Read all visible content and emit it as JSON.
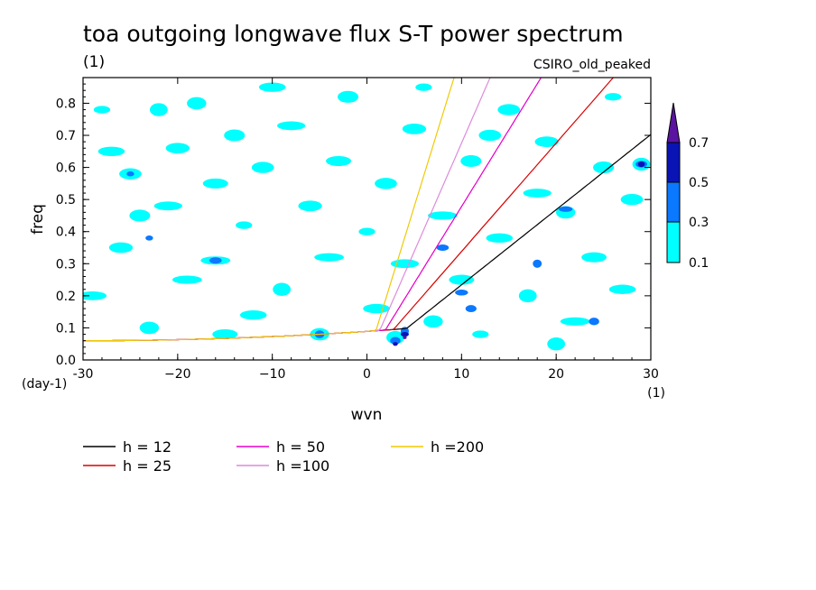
{
  "chart_data": {
    "type": "heatmap",
    "title": "toa outgoing longwave flux S-T power spectrum",
    "subtitle_left": "(1)",
    "subtitle_right": "CSIRO_old_peaked",
    "xlabel": "wvn",
    "ylabel": "freq",
    "x_unit": "(1)",
    "y_unit": "(day-1)",
    "xlim": [
      -30,
      30
    ],
    "ylim": [
      0,
      0.88
    ],
    "x_ticks": [
      -30,
      -20,
      -10,
      0,
      10,
      20,
      30
    ],
    "x_tick_labels": [
      "-30",
      "−20",
      "−10",
      "0",
      "10",
      "20",
      "30"
    ],
    "y_ticks": [
      0,
      0.1,
      0.2,
      0.3,
      0.4,
      0.5,
      0.6,
      0.7,
      0.8
    ],
    "y_tick_labels": [
      "0.0",
      "0.1",
      "0.2",
      "0.3",
      "0.4",
      "0.5",
      "0.6",
      "0.7",
      "0.8"
    ],
    "colorbar": {
      "levels": [
        "0.1",
        "0.3",
        "0.5",
        "0.7"
      ],
      "colors": [
        "#00ffff",
        "#0a78ff",
        "#0a14b4",
        "#5a14a0"
      ]
    },
    "contour_regions": [
      {
        "level": 0.1,
        "color": "#00ffff",
        "points": [
          [
            -28,
            0.78
          ],
          [
            -27,
            0.65
          ],
          [
            -25,
            0.58
          ],
          [
            -22,
            0.78
          ],
          [
            -21,
            0.48
          ],
          [
            -20,
            0.66
          ],
          [
            -18,
            0.8
          ],
          [
            -16,
            0.31
          ],
          [
            -16,
            0.55
          ],
          [
            -14,
            0.7
          ],
          [
            -13,
            0.42
          ],
          [
            -12,
            0.14
          ],
          [
            -11,
            0.6
          ],
          [
            -9,
            0.22
          ],
          [
            -8,
            0.73
          ],
          [
            -6,
            0.48
          ],
          [
            -5,
            0.08
          ],
          [
            -4,
            0.32
          ],
          [
            -3,
            0.62
          ],
          [
            -2,
            0.82
          ],
          [
            0,
            0.4
          ],
          [
            1,
            0.16
          ],
          [
            2,
            0.55
          ],
          [
            3,
            0.07
          ],
          [
            4,
            0.3
          ],
          [
            5,
            0.72
          ],
          [
            7,
            0.12
          ],
          [
            8,
            0.45
          ],
          [
            10,
            0.25
          ],
          [
            11,
            0.62
          ],
          [
            12,
            0.08
          ],
          [
            14,
            0.38
          ],
          [
            15,
            0.78
          ],
          [
            17,
            0.2
          ],
          [
            18,
            0.52
          ],
          [
            19,
            0.68
          ],
          [
            21,
            0.46
          ],
          [
            22,
            0.12
          ],
          [
            24,
            0.32
          ],
          [
            25,
            0.6
          ],
          [
            26,
            0.82
          ],
          [
            27,
            0.22
          ],
          [
            28,
            0.5
          ],
          [
            29,
            0.61
          ],
          [
            -29,
            0.2
          ],
          [
            -26,
            0.35
          ],
          [
            -23,
            0.1
          ],
          [
            -19,
            0.25
          ],
          [
            -15,
            0.08
          ],
          [
            -24,
            0.45
          ],
          [
            6,
            0.85
          ],
          [
            -10,
            0.85
          ],
          [
            13,
            0.7
          ],
          [
            20,
            0.05
          ]
        ]
      },
      {
        "level": 0.3,
        "color": "#0a78ff",
        "points": [
          [
            -25,
            0.58
          ],
          [
            -16,
            0.31
          ],
          [
            3,
            0.06
          ],
          [
            4,
            0.09
          ],
          [
            10,
            0.21
          ],
          [
            11,
            0.16
          ],
          [
            18,
            0.3
          ],
          [
            21,
            0.47
          ],
          [
            29,
            0.61
          ],
          [
            -5,
            0.08
          ],
          [
            -23,
            0.38
          ],
          [
            8,
            0.35
          ],
          [
            24,
            0.12
          ]
        ]
      },
      {
        "level": 0.5,
        "color": "#0a14b4",
        "points": [
          [
            3,
            0.05
          ],
          [
            4,
            0.08
          ],
          [
            29,
            0.61
          ]
        ]
      },
      {
        "level": 0.7,
        "color": "#5a14a0",
        "points": [
          [
            4,
            0.07
          ]
        ]
      }
    ],
    "series": [
      {
        "name": "h = 12",
        "equivalent_depth": 12,
        "color": "#000000"
      },
      {
        "name": "h = 25",
        "equivalent_depth": 25,
        "color": "#d80000"
      },
      {
        "name": "h = 50",
        "equivalent_depth": 50,
        "color": "#e600c8"
      },
      {
        "name": "h =100",
        "equivalent_depth": 100,
        "color": "#dc8cdc"
      },
      {
        "name": "h =200",
        "equivalent_depth": 200,
        "color": "#f0c800"
      }
    ]
  }
}
